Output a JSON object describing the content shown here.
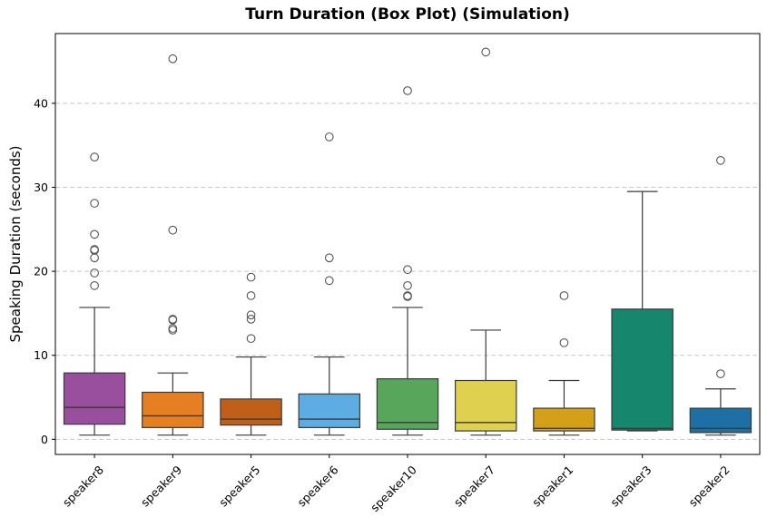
{
  "chart_data": {
    "type": "box",
    "title": "Turn Duration (Box Plot) (Simulation)",
    "xlabel": "",
    "ylabel": "Speaking Duration (seconds)",
    "ylim": [
      -1.8,
      48.3
    ],
    "yticks": [
      0,
      10,
      20,
      30,
      40
    ],
    "grid": "y dashed",
    "categories": [
      "speaker8",
      "speaker9",
      "speaker5",
      "speaker6",
      "speaker10",
      "speaker7",
      "speaker1",
      "speaker3",
      "speaker2"
    ],
    "boxes": [
      {
        "name": "speaker8",
        "color": "#9a4f9e",
        "whisker_low": 0.5,
        "q1": 1.8,
        "median": 3.8,
        "q3": 7.9,
        "whisker_high": 15.7,
        "outliers": [
          18.3,
          19.8,
          21.6,
          22.5,
          22.6,
          24.4,
          28.1,
          33.6
        ]
      },
      {
        "name": "speaker9",
        "color": "#e67e22",
        "whisker_low": 0.5,
        "q1": 1.4,
        "median": 2.8,
        "q3": 5.6,
        "whisker_high": 7.9,
        "outliers": [
          13.0,
          13.2,
          14.2,
          14.3,
          24.9,
          45.3
        ]
      },
      {
        "name": "speaker5",
        "color": "#c05f1a",
        "whisker_low": 0.5,
        "q1": 1.7,
        "median": 2.4,
        "q3": 4.8,
        "whisker_high": 9.8,
        "outliers": [
          12.0,
          14.3,
          14.8,
          17.1,
          19.3
        ]
      },
      {
        "name": "speaker6",
        "color": "#5dade2",
        "whisker_low": 0.5,
        "q1": 1.4,
        "median": 2.4,
        "q3": 5.4,
        "whisker_high": 9.8,
        "outliers": [
          18.9,
          21.6,
          36.0
        ]
      },
      {
        "name": "speaker10",
        "color": "#58a55c",
        "whisker_low": 0.5,
        "q1": 1.2,
        "median": 2.0,
        "q3": 7.2,
        "whisker_high": 15.7,
        "outliers": [
          17.0,
          17.1,
          18.3,
          20.2,
          41.5
        ]
      },
      {
        "name": "speaker7",
        "color": "#dfd14f",
        "whisker_low": 0.5,
        "q1": 1.0,
        "median": 2.0,
        "q3": 7.0,
        "whisker_high": 13.0,
        "outliers": [
          46.1
        ]
      },
      {
        "name": "speaker1",
        "color": "#d4a017",
        "whisker_low": 0.5,
        "q1": 1.0,
        "median": 1.3,
        "q3": 3.7,
        "whisker_high": 7.0,
        "outliers": [
          11.5,
          17.1
        ]
      },
      {
        "name": "speaker3",
        "color": "#16876c",
        "whisker_low": 1.0,
        "q1": 1.1,
        "median": 1.3,
        "q3": 15.5,
        "whisker_high": 29.5,
        "outliers": []
      },
      {
        "name": "speaker2",
        "color": "#1d6fa5",
        "whisker_low": 0.5,
        "q1": 0.8,
        "median": 1.3,
        "q3": 3.7,
        "whisker_high": 6.0,
        "outliers": [
          7.8,
          33.2
        ]
      }
    ]
  }
}
